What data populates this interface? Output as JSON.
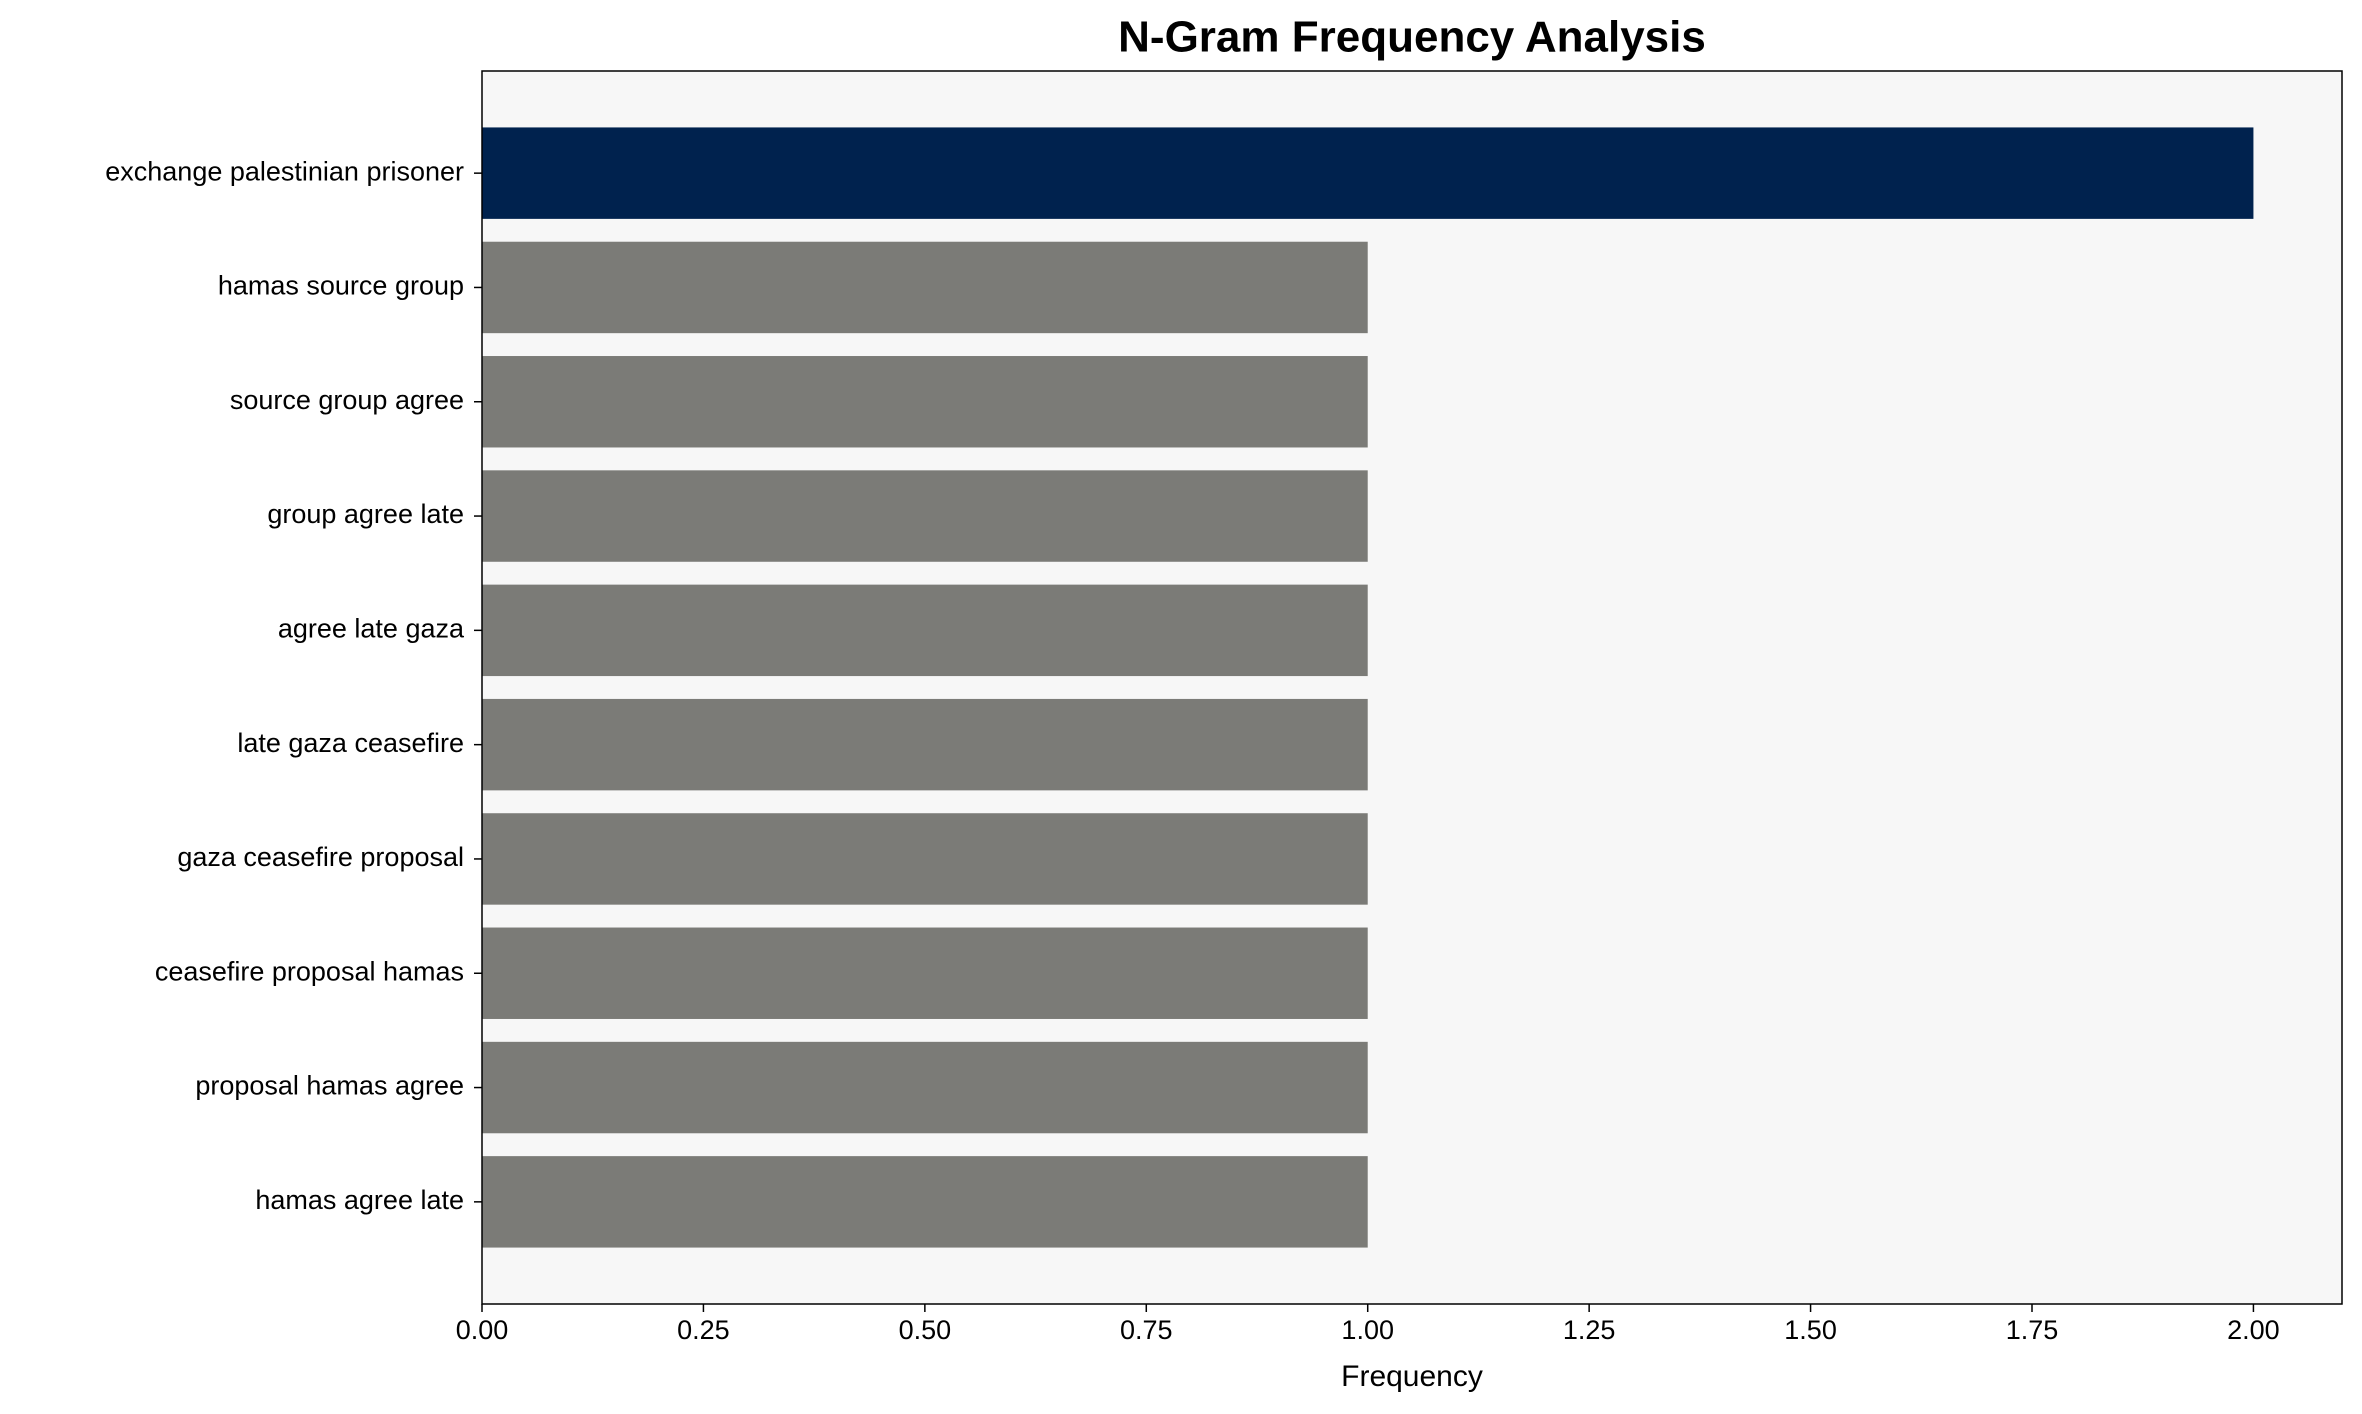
{
  "chart_data": {
    "type": "barh",
    "title": "N-Gram Frequency Analysis",
    "x_label": "Frequency",
    "categories": [
      "exchange palestinian prisoner",
      "hamas source group",
      "source group agree",
      "group agree late",
      "agree late gaza",
      "late gaza ceasefire",
      "gaza ceasefire proposal",
      "ceasefire proposal hamas",
      "proposal hamas agree",
      "hamas agree late"
    ],
    "values": [
      2,
      1,
      1,
      1,
      1,
      1,
      1,
      1,
      1,
      1
    ],
    "colors": [
      "#00224e",
      "#7b7b77",
      "#7b7b77",
      "#7b7b77",
      "#7b7b77",
      "#7b7b77",
      "#7b7b77",
      "#7b7b77",
      "#7b7b77",
      "#7b7b77"
    ],
    "xlim": [
      0,
      2.1
    ],
    "xticks": [
      {
        "value": 0,
        "label": "0.00"
      },
      {
        "value": 0.25,
        "label": "0.25"
      },
      {
        "value": 0.5,
        "label": "0.50"
      },
      {
        "value": 0.75,
        "label": "0.75"
      },
      {
        "value": 1,
        "label": "1.00"
      },
      {
        "value": 1.25,
        "label": "1.25"
      },
      {
        "value": 1.5,
        "label": "1.50"
      },
      {
        "value": 1.75,
        "label": "1.75"
      },
      {
        "value": 2,
        "label": "2.00"
      }
    ],
    "background": "#f7f7f7",
    "grid": false
  }
}
